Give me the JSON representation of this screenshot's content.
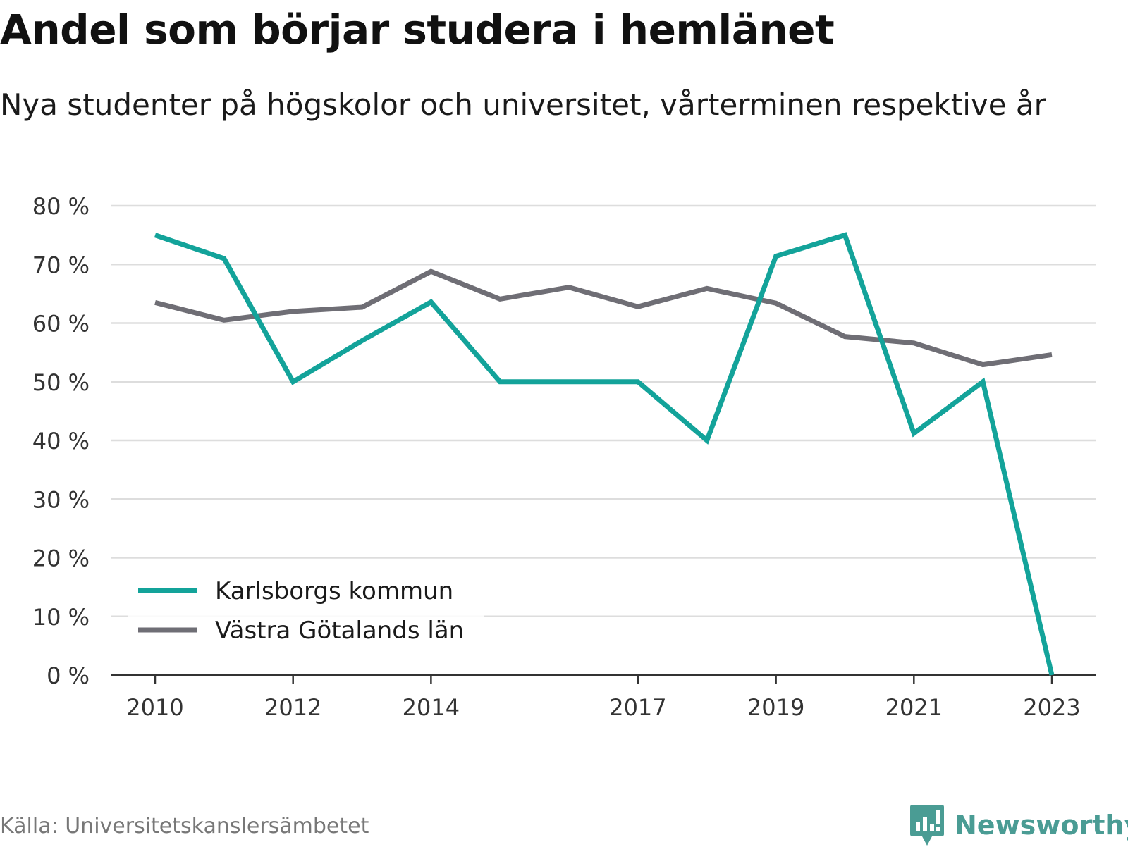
{
  "title": "Andel som börjar studera i hemlänet",
  "subtitle": "Nya studenter på högskolor och universitet, vårterminen respektive år",
  "source": "Källa: Universitetskanslersämbetet",
  "brand": "Newsworthy",
  "colors": {
    "karlsborg": "#13a39a",
    "vg": "#6f6e75",
    "grid": "#dddddd",
    "axis": "#333333",
    "brand": "#4a9c94"
  },
  "chart_data": {
    "type": "line",
    "title": "Andel som börjar studera i hemlänet",
    "subtitle": "Nya studenter på högskolor och universitet, vårterminen respektive år",
    "x": [
      2010,
      2011,
      2012,
      2013,
      2014,
      2015,
      2016,
      2017,
      2018,
      2019,
      2020,
      2021,
      2022,
      2023
    ],
    "x_tick_labels": [
      "2010",
      "2012",
      "2014",
      "2017",
      "2019",
      "2021",
      "2023"
    ],
    "y_ticks": [
      0,
      10,
      20,
      30,
      40,
      50,
      60,
      70,
      80
    ],
    "y_tick_labels": [
      "0 %",
      "10 %",
      "20 %",
      "30 %",
      "40 %",
      "50 %",
      "60 %",
      "70 %",
      "80 %"
    ],
    "ylim": [
      0,
      80
    ],
    "grid": true,
    "legend_position": "bottom-left",
    "series": [
      {
        "name": "Karlsborgs kommun",
        "values": [
          75,
          71,
          50,
          57,
          63.6,
          50,
          50,
          50,
          40,
          71.4,
          75,
          41.2,
          50,
          0
        ]
      },
      {
        "name": "Västra Götalands län",
        "values": [
          63.5,
          60.5,
          62,
          62.7,
          68.8,
          64.1,
          66.1,
          62.8,
          65.9,
          63.4,
          57.7,
          56.6,
          52.9,
          54.6
        ]
      }
    ]
  }
}
